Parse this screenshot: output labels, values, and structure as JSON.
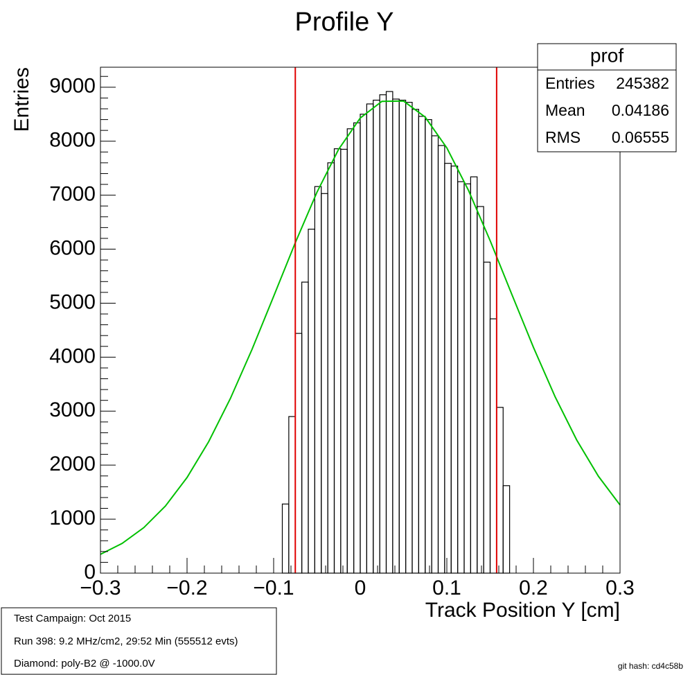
{
  "chart_data": {
    "type": "histogram",
    "title": "Profile Y",
    "x_label": "Track Position Y [cm]",
    "y_label": "Entries",
    "color": "#000000",
    "bins": [
      -0.3,
      -0.2925,
      -0.285,
      -0.2775,
      -0.27,
      -0.2625,
      -0.255,
      -0.2475,
      -0.24,
      -0.2325,
      -0.225,
      -0.2175,
      -0.21,
      -0.2025,
      -0.195,
      -0.1875,
      -0.18,
      -0.1725,
      -0.165,
      -0.1575,
      -0.15,
      -0.1425,
      -0.135,
      -0.1275,
      -0.12,
      -0.1125,
      -0.105,
      -0.0975,
      -0.09,
      -0.0825,
      -0.075,
      -0.0675,
      -0.06,
      -0.0525,
      -0.045,
      -0.0375,
      -0.03,
      -0.0225,
      -0.015,
      -0.0075,
      0,
      0.0075,
      0.015,
      0.0225,
      0.03,
      0.0375,
      0.045,
      0.0525,
      0.06,
      0.0675,
      0.075,
      0.0825,
      0.09,
      0.0975,
      0.105,
      0.1125,
      0.12,
      0.1275,
      0.135,
      0.1425,
      0.15,
      0.1575,
      0.165,
      0.1725,
      0.18,
      0.1875,
      0.195,
      0.2025,
      0.21,
      0.2175,
      0.225,
      0.2325,
      0.24,
      0.2475,
      0.255,
      0.2625,
      0.27,
      0.2775,
      0.285,
      0.2925,
      0.3
    ],
    "values": [
      0,
      0,
      0,
      0,
      0,
      0,
      0,
      0,
      0,
      0,
      0,
      0,
      0,
      0,
      0,
      0,
      0,
      0,
      0,
      0,
      0,
      0,
      0,
      0,
      0,
      0,
      0,
      0,
      1280,
      2900,
      4440,
      5390,
      6370,
      7160,
      7030,
      7600,
      7860,
      7850,
      8230,
      8340,
      8500,
      8690,
      8760,
      8860,
      8920,
      8780,
      8760,
      8720,
      8590,
      8460,
      8400,
      8100,
      7920,
      7590,
      7540,
      7250,
      7210,
      7340,
      6790,
      5760,
      4710,
      3070,
      1620,
      0,
      0,
      0,
      0,
      0,
      0,
      0,
      0,
      0,
      0,
      0,
      0,
      0,
      0,
      0,
      0,
      0
    ],
    "xlim": [
      -0.3,
      0.3
    ],
    "xticks": [
      {
        "value": -0.3,
        "label": "−0.3"
      },
      {
        "value": -0.2,
        "label": "−0.2"
      },
      {
        "value": -0.1,
        "label": "−0.1"
      },
      0,
      0.1,
      0.2,
      0.3
    ],
    "xminorticks": [
      -0.28,
      -0.26,
      -0.24,
      -0.22,
      -0.18,
      -0.16,
      -0.14,
      -0.12,
      -0.08,
      -0.06,
      -0.04,
      -0.02,
      0.02,
      0.04,
      0.06,
      0.08,
      0.12,
      0.14,
      0.16,
      0.18,
      0.22,
      0.24,
      0.26,
      0.28
    ],
    "ylim": [
      0,
      9370
    ],
    "yticks": [
      0,
      1000,
      2000,
      3000,
      4000,
      5000,
      6000,
      7000,
      8000,
      9000
    ],
    "yminorticks": [
      200,
      400,
      600,
      800,
      1200,
      1400,
      1600,
      1800,
      2200,
      2400,
      2600,
      2800,
      3200,
      3400,
      3600,
      3800,
      4200,
      4400,
      4600,
      4800,
      5200,
      5400,
      5600,
      5800,
      6200,
      6400,
      6600,
      6800,
      7200,
      7400,
      7600,
      7800,
      8200,
      8400,
      8600,
      8800,
      9200
    ],
    "fit": {
      "color": "#00c000",
      "x": [
        -0.3,
        -0.275,
        -0.25,
        -0.225,
        -0.2,
        -0.175,
        -0.15,
        -0.125,
        -0.1,
        -0.075,
        -0.05,
        -0.025,
        0,
        0.025,
        0.05,
        0.075,
        0.1,
        0.125,
        0.15,
        0.175,
        0.2,
        0.225,
        0.25,
        0.275,
        0.3
      ],
      "values": [
        348,
        550,
        842,
        1242,
        1771,
        2436,
        3233,
        4143,
        5126,
        6120,
        7054,
        7849,
        8429,
        8738,
        8744,
        8446,
        7876,
        7089,
        6158,
        5165,
        4182,
        3268,
        2465,
        1795,
        1262
      ]
    },
    "vlines": {
      "color": "#e00000",
      "x": [
        -0.075,
        0.1575
      ]
    },
    "stats": {
      "title": "prof",
      "rows": [
        {
          "label": "Entries",
          "value": 245382
        },
        {
          "label": "Mean",
          "value": 0.04186
        },
        {
          "label": "RMS",
          "value": 0.06555
        }
      ]
    }
  },
  "info_box": [
    "Test Campaign: Oct 2015",
    "Run 398: 9.2 MHz/cm2, 29:52 Min (555512 evts)",
    "Diamond: poly-B2 @ -1000.0V"
  ],
  "footer": "git hash: cd4c58b"
}
